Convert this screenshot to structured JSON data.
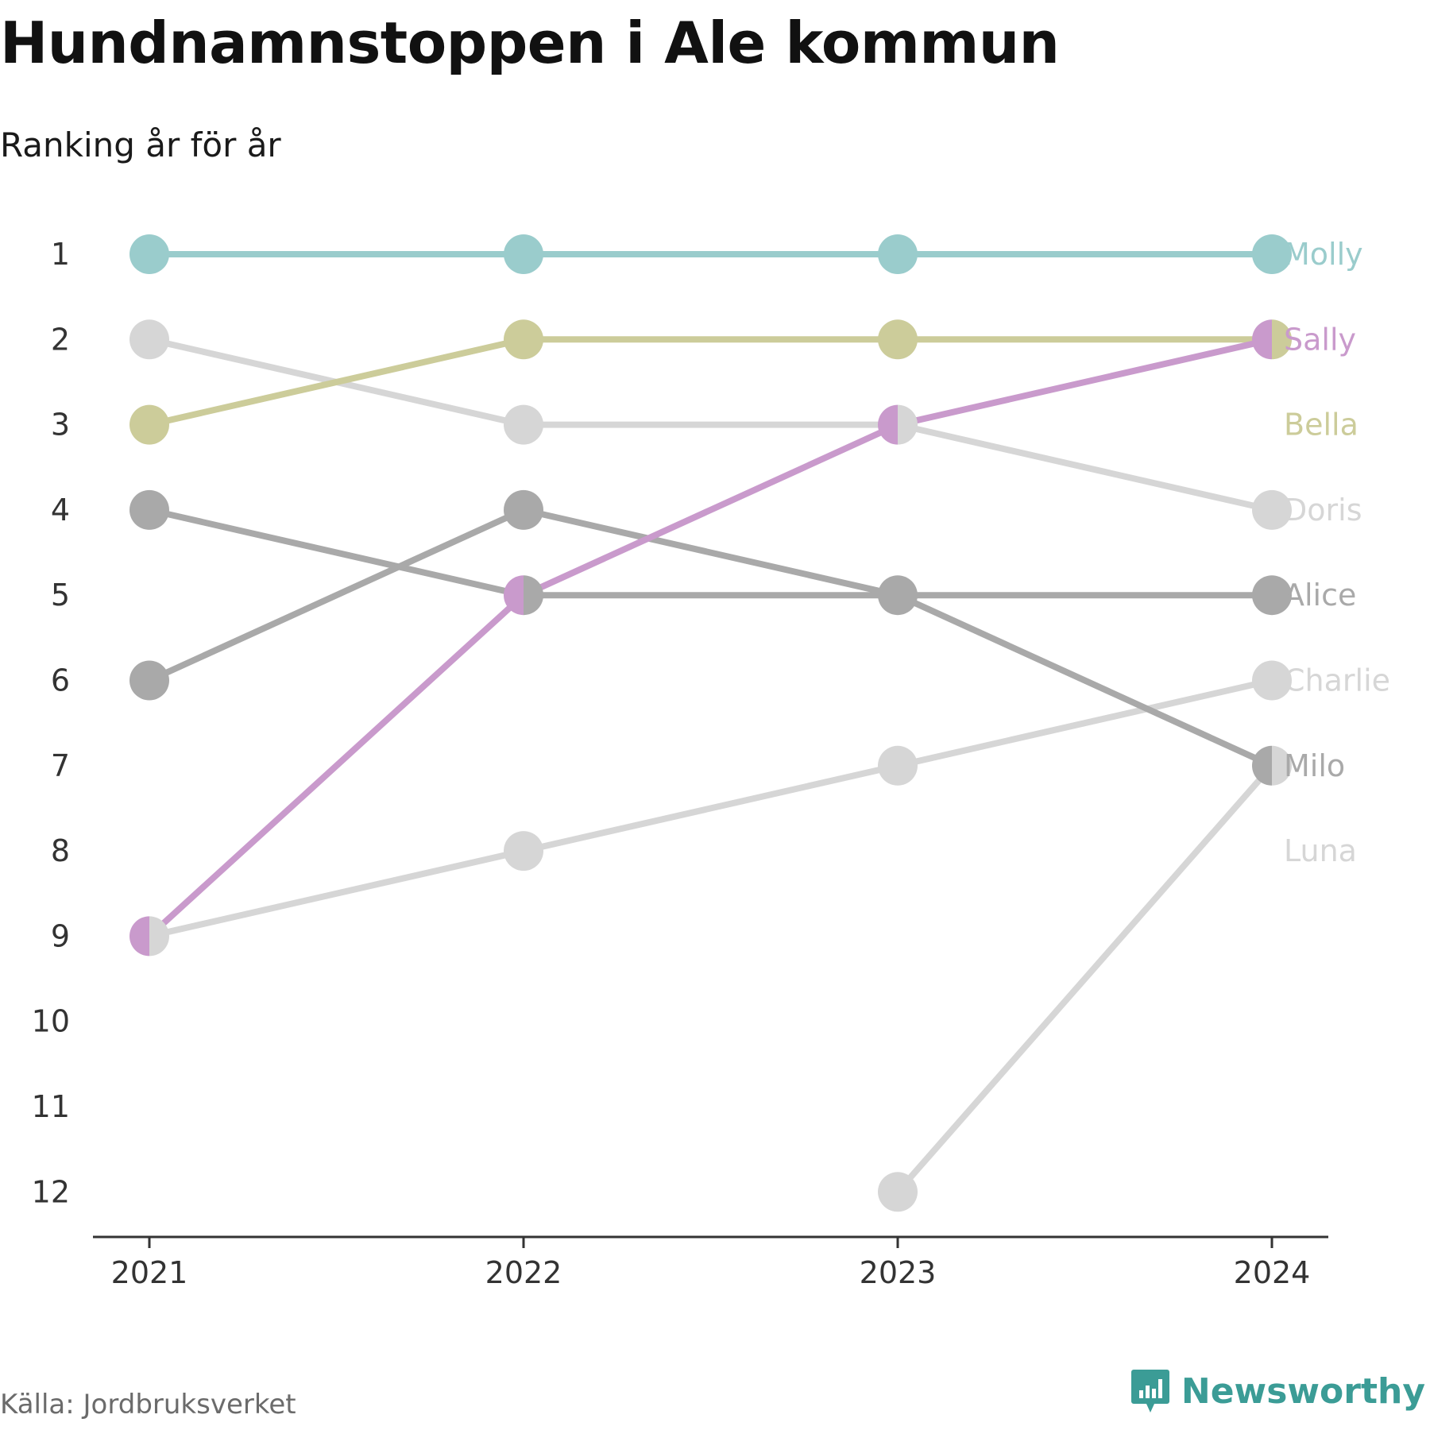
{
  "header": {
    "title": "Hundnamnstoppen i Ale kommun",
    "subtitle": "Ranking år för år"
  },
  "footer": {
    "source": "Källa: Jordbruksverket",
    "brand": "Newsworthy",
    "brand_icon": "newsworthy-logo-icon",
    "brand_color": "#3b9c96"
  },
  "chart_data": {
    "type": "line",
    "x": [
      "2021",
      "2022",
      "2023",
      "2024"
    ],
    "y_ticks": [
      "1",
      "2",
      "3",
      "4",
      "5",
      "6",
      "7",
      "8",
      "9",
      "10",
      "11",
      "12"
    ],
    "ylim": [
      1,
      12
    ],
    "y_reversed": true,
    "grid": false,
    "legend": "end-labels-right",
    "series": [
      {
        "name": "Molly",
        "values": [
          1,
          1,
          1,
          1
        ],
        "color": "#9acccc"
      },
      {
        "name": "Sally",
        "values": [
          9,
          5,
          3,
          2
        ],
        "color": "#c99acc"
      },
      {
        "name": "Bella",
        "values": [
          3,
          2,
          2,
          2
        ],
        "color": "#cccc9a"
      },
      {
        "name": "Doris",
        "values": [
          2,
          3,
          3,
          4
        ],
        "color": "#d6d6d6"
      },
      {
        "name": "Alice",
        "values": [
          6,
          4,
          5,
          5
        ],
        "color": "#a9a9a9"
      },
      {
        "name": "Charlie",
        "values": [
          9,
          8,
          7,
          6
        ],
        "color": "#d6d6d6"
      },
      {
        "name": "Milo",
        "values": [
          4,
          5,
          5,
          7
        ],
        "color": "#a9a9a9"
      },
      {
        "name": "Luna",
        "values": [
          null,
          null,
          12,
          7
        ],
        "color": "#d6d6d6"
      }
    ],
    "end_label_order": [
      "Molly",
      "Sally",
      "Bella",
      "Doris",
      "Alice",
      "Charlie",
      "Milo",
      "Luna"
    ]
  }
}
